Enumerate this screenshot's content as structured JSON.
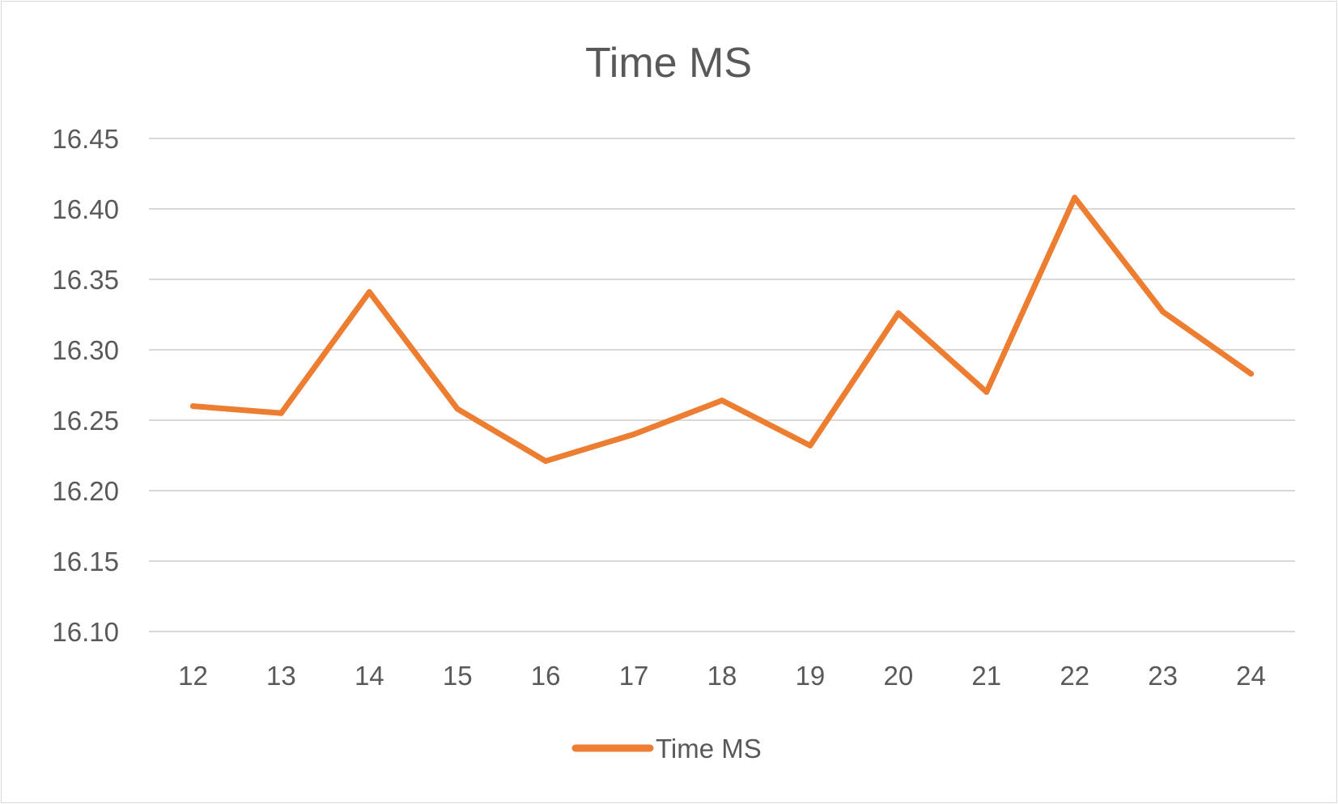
{
  "chart_data": {
    "type": "line",
    "title": "Time MS",
    "xlabel": "",
    "ylabel": "",
    "categories": [
      "12",
      "13",
      "14",
      "15",
      "16",
      "17",
      "18",
      "19",
      "20",
      "21",
      "22",
      "23",
      "24"
    ],
    "series": [
      {
        "name": "Time MS",
        "values": [
          16.26,
          16.255,
          16.341,
          16.258,
          16.221,
          16.24,
          16.264,
          16.232,
          16.326,
          16.27,
          16.408,
          16.327,
          16.283
        ]
      }
    ],
    "ylim": [
      16.1,
      16.45
    ],
    "y_ticks": [
      "16.10",
      "16.15",
      "16.20",
      "16.25",
      "16.30",
      "16.35",
      "16.40",
      "16.45"
    ],
    "grid": true,
    "legend_position": "bottom",
    "colors": {
      "series": "#ED7D31",
      "grid": "#D9D9D9",
      "text": "#595959",
      "border": "#D9D9D9"
    }
  }
}
